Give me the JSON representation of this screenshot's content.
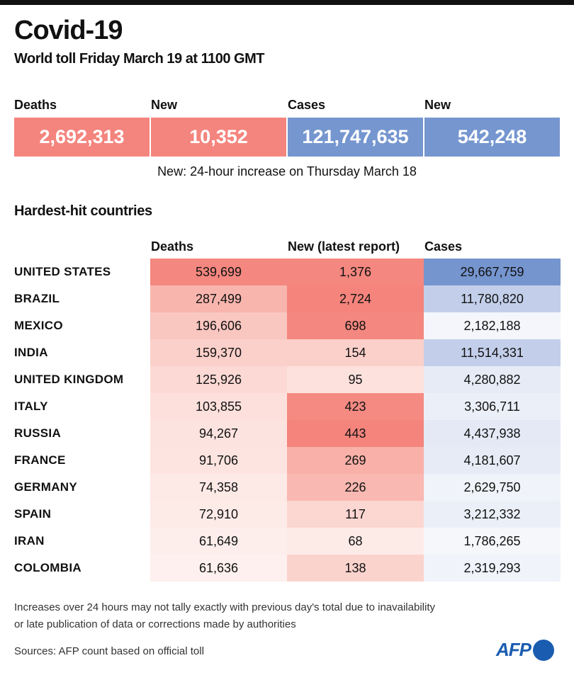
{
  "title": "Covid-19",
  "subtitle": "World toll Friday March 19 at 1100 GMT",
  "totals": [
    {
      "label": "Deaths",
      "value": "2,692,313",
      "color": "#f4857e"
    },
    {
      "label": "New",
      "value": "10,352",
      "color": "#f4857e"
    },
    {
      "label": "Cases",
      "value": "121,747,635",
      "color": "#7596cf"
    },
    {
      "label": "New",
      "value": "542,248",
      "color": "#7596cf"
    }
  ],
  "note": "New: 24-hour increase on Thursday March 18",
  "section_title": "Hardest-hit countries",
  "columns": [
    "Deaths",
    "New (latest report)",
    "Cases"
  ],
  "rows": [
    {
      "country": "UNITED STATES",
      "deaths": "539,699",
      "new": "1,376",
      "cases": "29,667,759",
      "dc": "#f4877f",
      "nc": "#f4877f",
      "cc": "#7595cf"
    },
    {
      "country": "BRAZIL",
      "deaths": "287,499",
      "new": "2,724",
      "cases": "11,780,820",
      "dc": "#f8b5ae",
      "nc": "#f4847c",
      "cc": "#c3cfea"
    },
    {
      "country": "MEXICO",
      "deaths": "196,606",
      "new": "698",
      "cases": "2,182,188",
      "dc": "#fac6c0",
      "nc": "#f4877f",
      "cc": "#f4f6fb"
    },
    {
      "country": "INDIA",
      "deaths": "159,370",
      "new": "154",
      "cases": "11,514,331",
      "dc": "#fbd0ca",
      "nc": "#fbd0ca",
      "cc": "#c3cfea"
    },
    {
      "country": "UNITED KINGDOM",
      "deaths": "125,926",
      "new": "95",
      "cases": "4,280,882",
      "dc": "#fcd9d4",
      "nc": "#fde1dd",
      "cc": "#e6ebf6"
    },
    {
      "country": "ITALY",
      "deaths": "103,855",
      "new": "423",
      "cases": "3,306,711",
      "dc": "#fde0dc",
      "nc": "#f48a82",
      "cc": "#ebeff8"
    },
    {
      "country": "RUSSIA",
      "deaths": "94,267",
      "new": "443",
      "cases": "4,437,938",
      "dc": "#fde3df",
      "nc": "#f4847c",
      "cc": "#e4e9f5"
    },
    {
      "country": "FRANCE",
      "deaths": "91,706",
      "new": "269",
      "cases": "4,181,607",
      "dc": "#fde4e0",
      "nc": "#f8b0a8",
      "cc": "#e6ebf6"
    },
    {
      "country": "GERMANY",
      "deaths": "74,358",
      "new": "226",
      "cases": "2,629,750",
      "dc": "#fde9e6",
      "nc": "#f9b8b1",
      "cc": "#f0f3f9"
    },
    {
      "country": "SPAIN",
      "deaths": "72,910",
      "new": "117",
      "cases": "3,212,332",
      "dc": "#fdebe8",
      "nc": "#fcd6d1",
      "cc": "#ebeff8"
    },
    {
      "country": "IRAN",
      "deaths": "61,649",
      "new": "68",
      "cases": "1,786,265",
      "dc": "#fdeeec",
      "nc": "#fdebe8",
      "cc": "#f5f7fb"
    },
    {
      "country": "COLOMBIA",
      "deaths": "61,636",
      "new": "138",
      "cases": "2,319,293",
      "dc": "#fdf0ee",
      "nc": "#fbd3cd",
      "cc": "#f0f3fa"
    }
  ],
  "footnote_1": "Increases over 24 hours may not tally exactly with previous day's total due to inavailability",
  "footnote_2": "or late publication of data or corrections made by authorities",
  "sources": "Sources: AFP count based on official toll",
  "logo": "AFP"
}
